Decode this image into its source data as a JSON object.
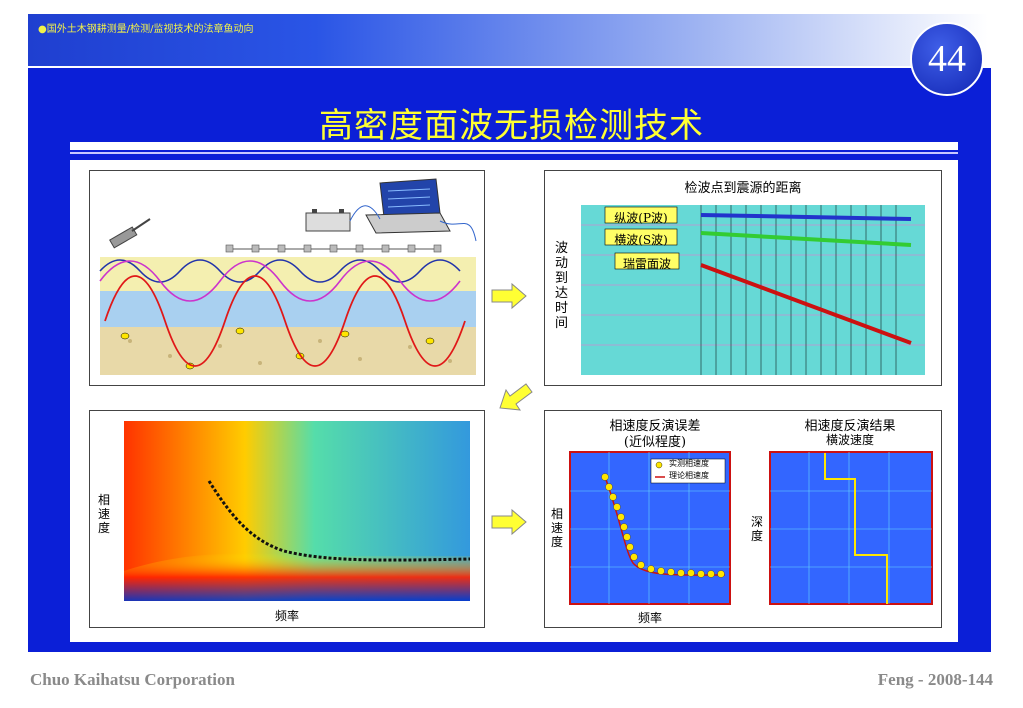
{
  "header": {
    "breadcrumb": "●国外土木钢耕测量/检测/监视技术的法章鱼动向",
    "slide_number": "44",
    "title": "高密度面波无损检测技术"
  },
  "panels": {
    "distance_title": "检波点到震源的距离",
    "arrival_time_label": "波动到达时间",
    "p_wave": "纵波(P波)",
    "s_wave": "横波(S波)",
    "rayleigh_wave": "瑞雷面波",
    "velocity_label": "相速度",
    "frequency_label": "频率",
    "inversion_error_title": "相速度反演误差",
    "inversion_error_subtitle": "(近似程度)",
    "legend_measured": "实测相速度",
    "legend_theoretical": "理论相速度",
    "inversion_result_title": "相速度反演结果",
    "inversion_result_subtitle": "横波速度",
    "depth_label": "深度"
  },
  "footer": {
    "company": "Chuo Kaihatsu Corporation",
    "code": "Feng - 2008-144"
  },
  "colors": {
    "frame": "#0b1fd7",
    "title": "#ffff33",
    "arrow": "#ffff33"
  }
}
